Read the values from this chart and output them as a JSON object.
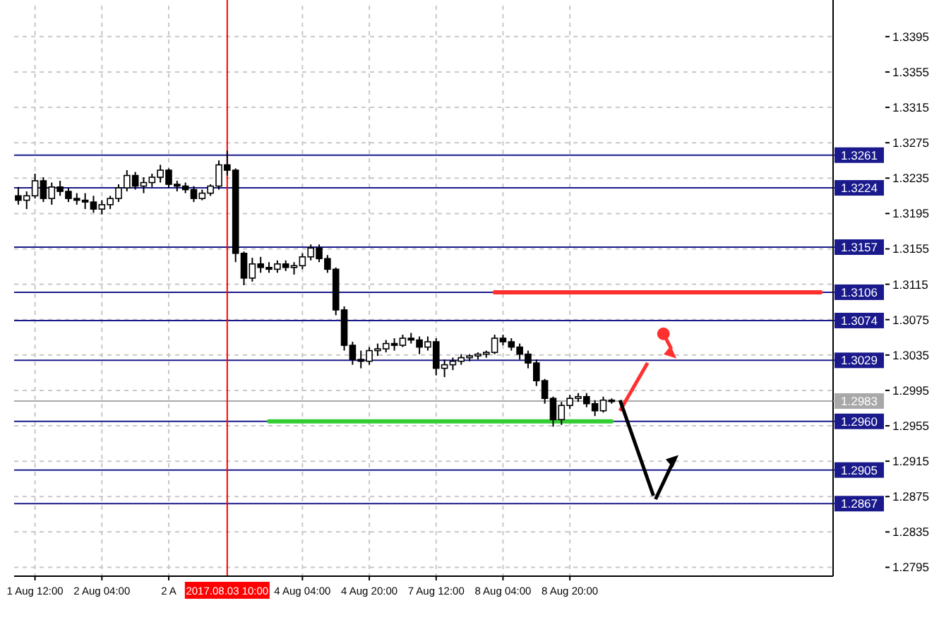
{
  "chart_data": {
    "type": "candlestick",
    "categories": [
      null,
      null,
      "1 Aug 12:00",
      null,
      null,
      null,
      null,
      null,
      null,
      null,
      "2 Aug 04:00",
      null,
      null,
      null,
      null,
      null,
      null,
      null,
      "2 A",
      null,
      null,
      null,
      null,
      null,
      null,
      "2017.08.03 10:00",
      null,
      null,
      null,
      null,
      null,
      null,
      null,
      null,
      "4 Aug 04:00",
      null,
      null,
      null,
      null,
      null,
      null,
      null,
      "4 Aug 20:00",
      null,
      null,
      null,
      null,
      null,
      null,
      null,
      "7 Aug 12:00",
      null,
      null,
      null,
      null,
      null,
      null,
      null,
      "8 Aug 04:00",
      null,
      null,
      null,
      null,
      null,
      null,
      null,
      "8 Aug 20:00",
      null,
      null,
      null,
      null,
      null,
      null,
      null,
      null,
      null,
      null,
      null,
      null,
      null,
      null,
      null,
      null,
      null,
      null,
      null,
      null,
      null,
      null,
      null,
      null,
      null,
      null,
      null,
      null,
      null,
      null,
      null
    ],
    "ohlc": [
      [
        1.3215,
        1.3225,
        1.3205,
        1.321
      ],
      [
        1.321,
        1.322,
        1.32,
        1.3215
      ],
      [
        1.3215,
        1.324,
        1.3212,
        1.3232
      ],
      [
        1.3232,
        1.3236,
        1.3208,
        1.3212
      ],
      [
        1.3212,
        1.323,
        1.3205,
        1.3225
      ],
      [
        1.3225,
        1.3232,
        1.3215,
        1.322
      ],
      [
        1.322,
        1.3224,
        1.3208,
        1.3212
      ],
      [
        1.3212,
        1.3218,
        1.3205,
        1.321
      ],
      [
        1.321,
        1.3218,
        1.32,
        1.3208
      ],
      [
        1.3208,
        1.3215,
        1.3196,
        1.32
      ],
      [
        1.32,
        1.321,
        1.3194,
        1.3205
      ],
      [
        1.3205,
        1.3215,
        1.32,
        1.3212
      ],
      [
        1.3212,
        1.3228,
        1.3208,
        1.3224
      ],
      [
        1.3224,
        1.3244,
        1.322,
        1.3238
      ],
      [
        1.3238,
        1.3242,
        1.3222,
        1.3226
      ],
      [
        1.3226,
        1.3236,
        1.3218,
        1.323
      ],
      [
        1.323,
        1.324,
        1.3225,
        1.3236
      ],
      [
        1.3236,
        1.325,
        1.323,
        1.3244
      ],
      [
        1.3244,
        1.3246,
        1.3224,
        1.3228
      ],
      [
        1.3228,
        1.3232,
        1.322,
        1.3226
      ],
      [
        1.3226,
        1.323,
        1.3218,
        1.3222
      ],
      [
        1.3222,
        1.3226,
        1.3208,
        1.3212
      ],
      [
        1.3212,
        1.3222,
        1.321,
        1.3218
      ],
      [
        1.3218,
        1.3228,
        1.3215,
        1.3226
      ],
      [
        1.3226,
        1.3255,
        1.3222,
        1.325
      ],
      [
        1.325,
        1.3266,
        1.3238,
        1.3244
      ],
      [
        1.3244,
        1.3246,
        1.314,
        1.315
      ],
      [
        1.315,
        1.3152,
        1.3114,
        1.3122
      ],
      [
        1.3122,
        1.3145,
        1.3118,
        1.3138
      ],
      [
        1.3138,
        1.3146,
        1.3128,
        1.3134
      ],
      [
        1.3134,
        1.314,
        1.3128,
        1.3132
      ],
      [
        1.3132,
        1.3142,
        1.3128,
        1.3138
      ],
      [
        1.3138,
        1.3142,
        1.313,
        1.3134
      ],
      [
        1.3134,
        1.314,
        1.3126,
        1.3136
      ],
      [
        1.3136,
        1.315,
        1.3132,
        1.3146
      ],
      [
        1.3146,
        1.316,
        1.3142,
        1.3156
      ],
      [
        1.3156,
        1.316,
        1.314,
        1.3144
      ],
      [
        1.3144,
        1.3148,
        1.3128,
        1.3132
      ],
      [
        1.3132,
        1.3134,
        1.308,
        1.3086
      ],
      [
        1.3086,
        1.309,
        1.304,
        1.3046
      ],
      [
        1.3046,
        1.305,
        1.3024,
        1.303
      ],
      [
        1.303,
        1.304,
        1.302,
        1.3028
      ],
      [
        1.3028,
        1.3044,
        1.3024,
        1.304
      ],
      [
        1.304,
        1.3048,
        1.3034,
        1.3042
      ],
      [
        1.3042,
        1.3052,
        1.3038,
        1.3048
      ],
      [
        1.3048,
        1.3054,
        1.304,
        1.3046
      ],
      [
        1.3046,
        1.3058,
        1.3044,
        1.3054
      ],
      [
        1.3054,
        1.306,
        1.3048,
        1.3052
      ],
      [
        1.3052,
        1.3056,
        1.3036,
        1.3044
      ],
      [
        1.3044,
        1.3056,
        1.304,
        1.305
      ],
      [
        1.305,
        1.3054,
        1.3012,
        1.302
      ],
      [
        1.302,
        1.303,
        1.301,
        1.3024
      ],
      [
        1.3024,
        1.3032,
        1.3018,
        1.3028
      ],
      [
        1.3028,
        1.3036,
        1.3024,
        1.3032
      ],
      [
        1.3032,
        1.3036,
        1.3028,
        1.3034
      ],
      [
        1.3034,
        1.3038,
        1.303,
        1.3036
      ],
      [
        1.3036,
        1.304,
        1.3032,
        1.3038
      ],
      [
        1.3038,
        1.3058,
        1.3036,
        1.3054
      ],
      [
        1.3054,
        1.3058,
        1.3046,
        1.305
      ],
      [
        1.305,
        1.3054,
        1.304,
        1.3044
      ],
      [
        1.3044,
        1.3048,
        1.303,
        1.3036
      ],
      [
        1.3036,
        1.304,
        1.302,
        1.3026
      ],
      [
        1.3026,
        1.303,
        1.3,
        1.3006
      ],
      [
        1.3006,
        1.3008,
        1.298,
        1.2986
      ],
      [
        1.2986,
        1.2988,
        1.2954,
        1.2962
      ],
      [
        1.2962,
        1.2982,
        1.2956,
        1.2978
      ],
      [
        1.2978,
        1.299,
        1.2974,
        1.2986
      ],
      [
        1.2986,
        1.2992,
        1.2982,
        1.2988
      ],
      [
        1.2988,
        1.2992,
        1.2976,
        1.298
      ],
      [
        1.298,
        1.2984,
        1.2966,
        1.2972
      ],
      [
        1.2972,
        1.2988,
        1.297,
        1.2984
      ],
      [
        1.2984,
        1.2986,
        1.298,
        1.2983
      ],
      null,
      null,
      null,
      null,
      null,
      null,
      null,
      null,
      null,
      null,
      null,
      null,
      null,
      null,
      null,
      null,
      null,
      null,
      null,
      null,
      null,
      null,
      null,
      null,
      null,
      null
    ],
    "series": [
      {
        "type": "line",
        "color": "#ff3030",
        "values": [
          null,
          null,
          null,
          null,
          null,
          null,
          null,
          null,
          null,
          null,
          null,
          null,
          null,
          null,
          null,
          null,
          null,
          null,
          null,
          null,
          null,
          null,
          null,
          null,
          null,
          null,
          null,
          null,
          null,
          null,
          null,
          null,
          null,
          null,
          null,
          null,
          null,
          null,
          null,
          null,
          null,
          null,
          null,
          null,
          null,
          null,
          null,
          null,
          null,
          null,
          null,
          null,
          null,
          null,
          null,
          null,
          null,
          1.3106,
          1.3106,
          1.3106,
          1.3106,
          1.3106,
          1.3106,
          1.3106,
          1.3106,
          1.3106,
          1.3106,
          1.3106,
          1.3106,
          1.3106,
          1.3106,
          1.3106,
          1.3106,
          1.3106,
          1.3106,
          1.3106,
          1.3106,
          1.3106,
          1.3106,
          1.3106,
          1.3106,
          1.3106,
          1.3106,
          1.3106,
          1.3106,
          1.3106,
          1.3106,
          1.3106,
          1.3106,
          1.3106,
          1.3106,
          1.3106,
          1.3106,
          1.3106,
          1.3106,
          1.3106,
          1.3106,
          null
        ]
      },
      {
        "type": "line",
        "color": "#33cc33",
        "values": [
          null,
          null,
          null,
          null,
          null,
          null,
          null,
          null,
          null,
          null,
          null,
          null,
          null,
          null,
          null,
          null,
          null,
          null,
          null,
          null,
          null,
          null,
          null,
          null,
          null,
          null,
          null,
          null,
          null,
          null,
          1.296,
          1.296,
          1.296,
          1.296,
          1.296,
          1.296,
          1.296,
          1.296,
          1.296,
          1.296,
          1.296,
          1.296,
          1.296,
          1.296,
          1.296,
          1.296,
          1.296,
          1.296,
          1.296,
          1.296,
          1.296,
          1.296,
          1.296,
          1.296,
          1.296,
          1.296,
          1.296,
          1.296,
          1.296,
          1.296,
          1.296,
          1.296,
          1.296,
          1.296,
          1.296,
          1.296,
          1.296,
          1.296,
          1.296,
          1.296,
          1.296,
          1.296,
          null,
          null,
          null,
          null,
          null,
          null,
          null,
          null,
          null,
          null,
          null,
          null,
          null,
          null,
          null,
          null,
          null,
          null,
          null,
          null,
          null,
          null,
          null,
          null,
          null,
          null
        ]
      }
    ],
    "ylim": [
      1.2785,
      1.343
    ],
    "yticks": [
      1.2795,
      1.2835,
      1.2875,
      1.2915,
      1.2955,
      1.2995,
      1.3035,
      1.3075,
      1.3115,
      1.3155,
      1.3195,
      1.3235,
      1.3275,
      1.3315,
      1.3355,
      1.3395
    ],
    "grid": true,
    "ref_lines": [
      {
        "axis": "y",
        "value": 1.3261,
        "label": "1.3261",
        "color": "#1a1a8c"
      },
      {
        "axis": "y",
        "value": 1.3224,
        "label": "1.3224",
        "color": "#1a1a8c"
      },
      {
        "axis": "y",
        "value": 1.3157,
        "label": "1.3157",
        "color": "#1a1a8c"
      },
      {
        "axis": "y",
        "value": 1.3106,
        "label": "1.3106",
        "color": "#1a1a8c"
      },
      {
        "axis": "y",
        "value": 1.3074,
        "label": "1.3074",
        "color": "#1a1a8c"
      },
      {
        "axis": "y",
        "value": 1.3029,
        "label": "1.3029",
        "color": "#1a1a8c"
      },
      {
        "axis": "y",
        "value": 1.2983,
        "label": "1.2983",
        "color": "#a8a8a8"
      },
      {
        "axis": "y",
        "value": 1.296,
        "label": "1.2960",
        "color": "#1a1a8c"
      },
      {
        "axis": "y",
        "value": 1.2905,
        "label": "1.2905",
        "color": "#1a1a8c"
      },
      {
        "axis": "y",
        "value": 1.2867,
        "label": "1.2867",
        "color": "#1a1a8c"
      },
      {
        "axis": "x",
        "value": "2017.08.03 10:00",
        "color": "#ff0000"
      }
    ]
  }
}
